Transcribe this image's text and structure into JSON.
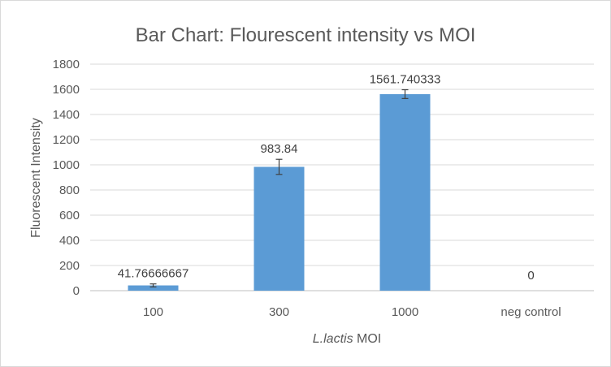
{
  "chart_data": {
    "type": "bar",
    "title": "Bar Chart: Flourescent intensity vs MOI",
    "xlabel_italic": "L.lactis",
    "xlabel_rest": " MOI",
    "ylabel": "Fluorescent Intensity",
    "categories": [
      "100",
      "300",
      "1000",
      "neg control"
    ],
    "values": [
      41.76666667,
      983.84,
      1561.740333,
      0
    ],
    "data_labels": [
      "41.76666667",
      "983.84",
      "1561.740333",
      "0"
    ],
    "error": [
      12,
      60,
      35,
      0
    ],
    "ylim": [
      0,
      1800
    ],
    "yticks": [
      "0",
      "200",
      "400",
      "600",
      "800",
      "1000",
      "1200",
      "1400",
      "1600",
      "1800"
    ],
    "grid": true,
    "bar_color": "#5b9bd5",
    "grid_color": "#d9d9d9"
  }
}
